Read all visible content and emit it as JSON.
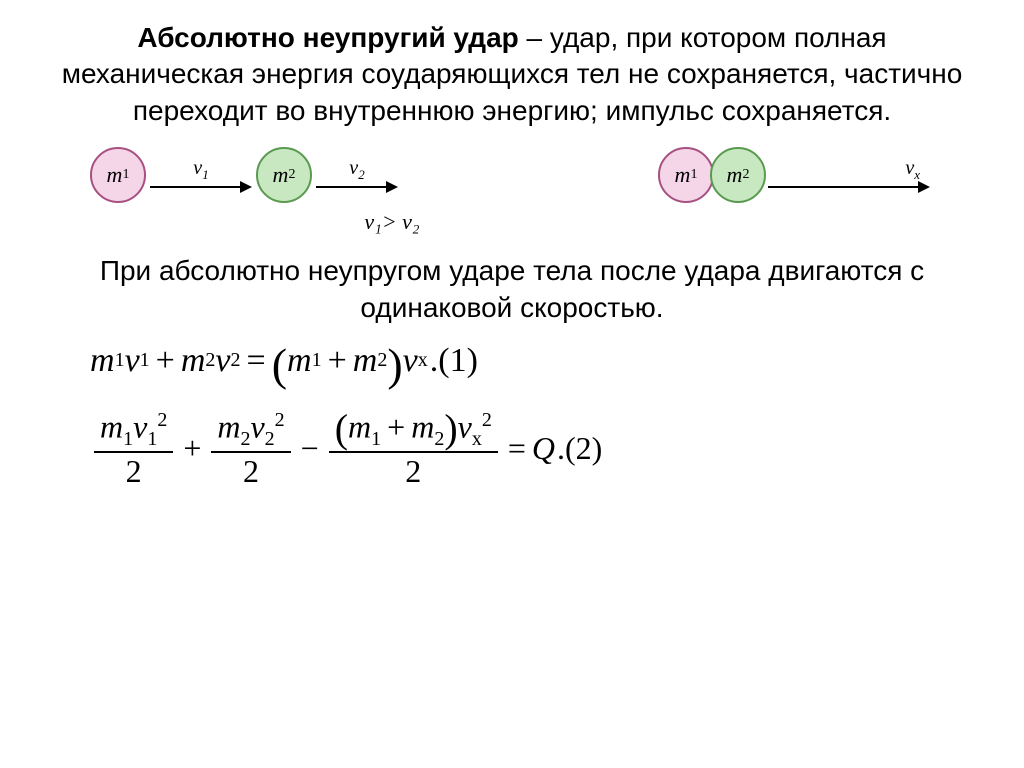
{
  "title": {
    "bold": "Абсолютно неупругий удар",
    "rest": " – удар, при котором полная механическая энергия соударяющихся тел не сохраняется, частично переходит во внутреннюю энергию; импульс сохраняется."
  },
  "diagram": {
    "ball1_label": "m",
    "ball1_sub": "1",
    "ball2_label": "m",
    "ball2_sub": "2",
    "v1_label": "v",
    "v1_sub": "1",
    "v2_label": "v",
    "v2_sub": "2",
    "vx_label": "v",
    "vx_sub": "x",
    "arrow1_len": 90,
    "arrow2_len": 70,
    "arrowx_len": 150,
    "colors": {
      "ball1_fill": "#f4d6e8",
      "ball1_border": "#a85082",
      "ball2_fill": "#c7e8c1",
      "ball2_border": "#5a9a4f"
    }
  },
  "condition": "v₁> v₂",
  "body_text": "При абсолютно неупругом ударе тела после удара двигаются с одинаковой скоростью.",
  "eq1": {
    "m": "m",
    "v": "v",
    "s1": "1",
    "s2": "2",
    "sx": "x",
    "plus": "+",
    "eq": "=",
    "tag": ".(1)"
  },
  "eq2": {
    "m": "m",
    "v": "v",
    "s1": "1",
    "s2": "2",
    "sx": "x",
    "two": "2",
    "sq": "2",
    "plus": "+",
    "minus": "−",
    "eq": "=",
    "Q": "Q",
    "tag": ".(2)"
  }
}
